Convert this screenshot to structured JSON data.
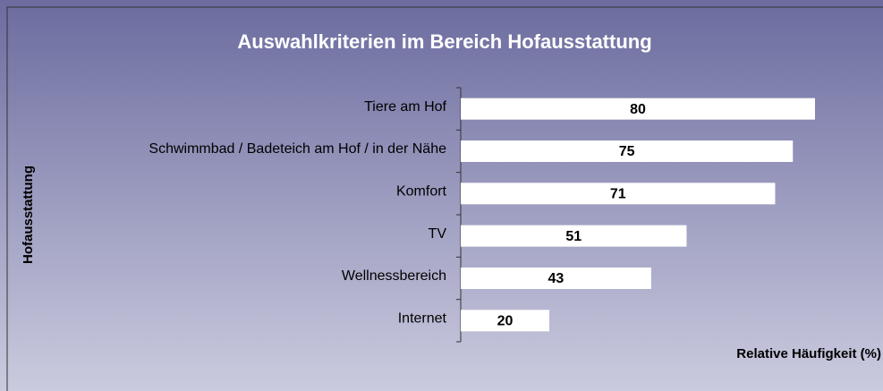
{
  "chart_data": {
    "type": "bar",
    "orientation": "horizontal",
    "title": "Auswahlkriterien im Bereich Hofausstattung",
    "y_label": "Hofausstattung",
    "x_label": "Relative Häufigkeit (%)",
    "categories": [
      "Tiere am Hof",
      "Schwimmbad / Badeteich am Hof / in der Nähe",
      "Komfort",
      "TV",
      "Wellnessbereich",
      "Internet"
    ],
    "values": [
      80,
      75,
      71,
      51,
      43,
      20
    ],
    "color": "#ffffff",
    "xlim": [
      0,
      100
    ]
  }
}
